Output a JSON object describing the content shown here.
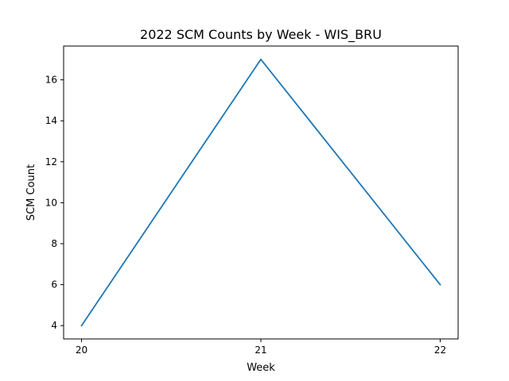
{
  "chart_data": {
    "type": "line",
    "title": "2022 SCM Counts by Week - WIS_BRU",
    "xlabel": "Week",
    "ylabel": "SCM Count",
    "x": [
      20,
      21,
      22
    ],
    "series": [
      {
        "values": [
          4,
          17,
          6
        ],
        "color": "#1f77b4"
      }
    ],
    "xlim": [
      19.9,
      22.1
    ],
    "ylim": [
      3.35,
      17.65
    ],
    "xticks": [
      20,
      21,
      22
    ],
    "yticks": [
      4,
      6,
      8,
      10,
      12,
      14,
      16
    ],
    "grid": false,
    "legend": "none"
  }
}
